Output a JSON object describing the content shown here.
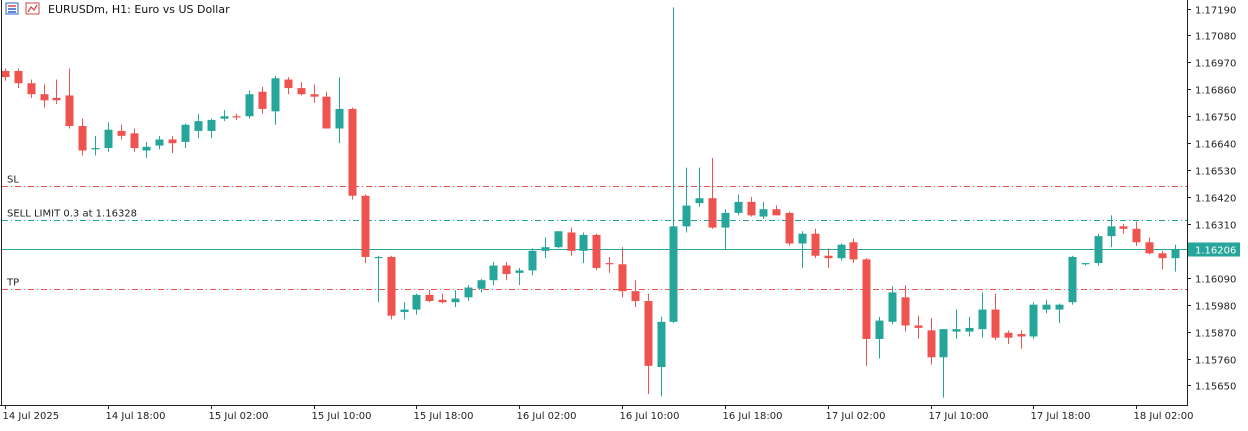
{
  "window": {
    "symbol": "EURUSDm",
    "timeframe": "H1",
    "description": "Euro vs US Dollar",
    "title": "EURUSDm, H1:  Euro vs US Dollar"
  },
  "icons": {
    "window_menu": "window-menu-icon",
    "symbol_chart": "symbol-chart-icon"
  },
  "colors": {
    "bull": "#26a69a",
    "bear": "#ef5350",
    "grid": "#dcdcdc",
    "frame": "#222222",
    "sl_line": "#ef5350",
    "tp_line": "#ef5350",
    "limit_line": "#26a69a",
    "bid_line": "#26a69a",
    "price_tag_bg": "#26a69a",
    "price_tag_text": "#ffffff"
  },
  "chart_data": {
    "type": "candlestick",
    "y_ticks": [
      1.1719,
      1.1708,
      1.1697,
      1.1686,
      1.1675,
      1.1664,
      1.1653,
      1.1642,
      1.1631,
      1.162,
      1.1609,
      1.1598,
      1.1587,
      1.1576,
      1.1565
    ],
    "ylim": [
      1.1557,
      1.17225
    ],
    "current_price": {
      "value": 1.16206,
      "label": "1.16206"
    },
    "levels": [
      {
        "label": "SL",
        "price": 1.16465,
        "style": "dashdot",
        "color": "#ef5350"
      },
      {
        "label": "SELL LIMIT 0.3 at 1.16328",
        "price": 1.16328,
        "style": "dashdot",
        "color": "#26a69a"
      },
      {
        "label": "TP",
        "price": 1.16045,
        "style": "dashdot",
        "color": "#ef5350"
      }
    ],
    "x_labels": [
      {
        "text": "14 Jul 2025",
        "index": 0
      },
      {
        "text": "14 Jul 18:00",
        "index": 8
      },
      {
        "text": "15 Jul 02:00",
        "index": 16
      },
      {
        "text": "15 Jul 10:00",
        "index": 24
      },
      {
        "text": "15 Jul 18:00",
        "index": 32
      },
      {
        "text": "16 Jul 02:00",
        "index": 40
      },
      {
        "text": "16 Jul 10:00",
        "index": 48
      },
      {
        "text": "16 Jul 18:00",
        "index": 56
      },
      {
        "text": "17 Jul 02:00",
        "index": 64
      },
      {
        "text": "17 Jul 10:00",
        "index": 72
      },
      {
        "text": "17 Jul 18:00",
        "index": 80
      },
      {
        "text": "18 Jul 02:00",
        "index": 88
      }
    ],
    "candles": [
      {
        "o": 1.16935,
        "h": 1.16945,
        "l": 1.16895,
        "c": 1.1691
      },
      {
        "o": 1.16935,
        "h": 1.16945,
        "l": 1.16865,
        "c": 1.16885
      },
      {
        "o": 1.16885,
        "h": 1.169,
        "l": 1.16825,
        "c": 1.1684
      },
      {
        "o": 1.1684,
        "h": 1.1688,
        "l": 1.16785,
        "c": 1.16815
      },
      {
        "o": 1.16825,
        "h": 1.169,
        "l": 1.168,
        "c": 1.16815
      },
      {
        "o": 1.16835,
        "h": 1.16945,
        "l": 1.167,
        "c": 1.1671
      },
      {
        "o": 1.1671,
        "h": 1.1674,
        "l": 1.1659,
        "c": 1.1661
      },
      {
        "o": 1.16615,
        "h": 1.1667,
        "l": 1.1659,
        "c": 1.1662
      },
      {
        "o": 1.1662,
        "h": 1.16725,
        "l": 1.16605,
        "c": 1.16695
      },
      {
        "o": 1.1669,
        "h": 1.16715,
        "l": 1.16655,
        "c": 1.1667
      },
      {
        "o": 1.1668,
        "h": 1.167,
        "l": 1.16605,
        "c": 1.1662
      },
      {
        "o": 1.1661,
        "h": 1.16645,
        "l": 1.1658,
        "c": 1.16625
      },
      {
        "o": 1.1663,
        "h": 1.1667,
        "l": 1.16615,
        "c": 1.16655
      },
      {
        "o": 1.16655,
        "h": 1.1667,
        "l": 1.166,
        "c": 1.1664
      },
      {
        "o": 1.16645,
        "h": 1.1672,
        "l": 1.1662,
        "c": 1.16715
      },
      {
        "o": 1.1669,
        "h": 1.1676,
        "l": 1.1666,
        "c": 1.1673
      },
      {
        "o": 1.1669,
        "h": 1.1674,
        "l": 1.1666,
        "c": 1.16735
      },
      {
        "o": 1.1674,
        "h": 1.16775,
        "l": 1.1673,
        "c": 1.1675
      },
      {
        "o": 1.1675,
        "h": 1.1676,
        "l": 1.16735,
        "c": 1.16745
      },
      {
        "o": 1.1675,
        "h": 1.16855,
        "l": 1.1674,
        "c": 1.1684
      },
      {
        "o": 1.1685,
        "h": 1.1687,
        "l": 1.1676,
        "c": 1.1678
      },
      {
        "o": 1.1677,
        "h": 1.16915,
        "l": 1.16715,
        "c": 1.16905
      },
      {
        "o": 1.169,
        "h": 1.1691,
        "l": 1.1684,
        "c": 1.16865
      },
      {
        "o": 1.16865,
        "h": 1.1689,
        "l": 1.16835,
        "c": 1.1684
      },
      {
        "o": 1.1684,
        "h": 1.1688,
        "l": 1.16805,
        "c": 1.1683
      },
      {
        "o": 1.1683,
        "h": 1.1685,
        "l": 1.167,
        "c": 1.167
      },
      {
        "o": 1.167,
        "h": 1.1691,
        "l": 1.1664,
        "c": 1.1678
      },
      {
        "o": 1.1678,
        "h": 1.16785,
        "l": 1.1641,
        "c": 1.16425
      },
      {
        "o": 1.16425,
        "h": 1.1643,
        "l": 1.1615,
        "c": 1.16175
      },
      {
        "o": 1.16175,
        "h": 1.1618,
        "l": 1.1599,
        "c": 1.16175
      },
      {
        "o": 1.16175,
        "h": 1.1618,
        "l": 1.1592,
        "c": 1.15935
      },
      {
        "o": 1.1595,
        "h": 1.1599,
        "l": 1.1592,
        "c": 1.1596
      },
      {
        "o": 1.1596,
        "h": 1.16025,
        "l": 1.1594,
        "c": 1.1602
      },
      {
        "o": 1.1602,
        "h": 1.1604,
        "l": 1.1599,
        "c": 1.15995
      },
      {
        "o": 1.16,
        "h": 1.16025,
        "l": 1.15985,
        "c": 1.1599
      },
      {
        "o": 1.1599,
        "h": 1.1604,
        "l": 1.1597,
        "c": 1.16005
      },
      {
        "o": 1.1601,
        "h": 1.1606,
        "l": 1.15995,
        "c": 1.1605
      },
      {
        "o": 1.16045,
        "h": 1.16085,
        "l": 1.1603,
        "c": 1.1608
      },
      {
        "o": 1.1608,
        "h": 1.16155,
        "l": 1.1606,
        "c": 1.1614
      },
      {
        "o": 1.1614,
        "h": 1.16155,
        "l": 1.1608,
        "c": 1.16105
      },
      {
        "o": 1.1611,
        "h": 1.1613,
        "l": 1.1606,
        "c": 1.1612
      },
      {
        "o": 1.1612,
        "h": 1.1621,
        "l": 1.161,
        "c": 1.162
      },
      {
        "o": 1.162,
        "h": 1.16255,
        "l": 1.1617,
        "c": 1.16215
      },
      {
        "o": 1.16215,
        "h": 1.1628,
        "l": 1.1621,
        "c": 1.1628
      },
      {
        "o": 1.16275,
        "h": 1.16295,
        "l": 1.1618,
        "c": 1.162
      },
      {
        "o": 1.162,
        "h": 1.16275,
        "l": 1.1615,
        "c": 1.16265
      },
      {
        "o": 1.16265,
        "h": 1.1627,
        "l": 1.1612,
        "c": 1.1613
      },
      {
        "o": 1.1615,
        "h": 1.16175,
        "l": 1.1611,
        "c": 1.16145
      },
      {
        "o": 1.16145,
        "h": 1.16215,
        "l": 1.1601,
        "c": 1.16035
      },
      {
        "o": 1.16035,
        "h": 1.1608,
        "l": 1.1597,
        "c": 1.15995
      },
      {
        "o": 1.15995,
        "h": 1.16025,
        "l": 1.15615,
        "c": 1.1573
      },
      {
        "o": 1.15725,
        "h": 1.1593,
        "l": 1.15605,
        "c": 1.1591
      },
      {
        "o": 1.1591,
        "h": 1.17195,
        "l": 1.15905,
        "c": 1.163
      },
      {
        "o": 1.163,
        "h": 1.1654,
        "l": 1.16275,
        "c": 1.16385
      },
      {
        "o": 1.16395,
        "h": 1.1654,
        "l": 1.1638,
        "c": 1.16415
      },
      {
        "o": 1.16415,
        "h": 1.1658,
        "l": 1.1629,
        "c": 1.16295
      },
      {
        "o": 1.16295,
        "h": 1.1637,
        "l": 1.16205,
        "c": 1.16355
      },
      {
        "o": 1.16355,
        "h": 1.1643,
        "l": 1.16345,
        "c": 1.164
      },
      {
        "o": 1.164,
        "h": 1.1642,
        "l": 1.1634,
        "c": 1.16345
      },
      {
        "o": 1.1634,
        "h": 1.164,
        "l": 1.1633,
        "c": 1.1637
      },
      {
        "o": 1.1637,
        "h": 1.16385,
        "l": 1.16345,
        "c": 1.16345
      },
      {
        "o": 1.16355,
        "h": 1.1636,
        "l": 1.1622,
        "c": 1.1623
      },
      {
        "o": 1.1623,
        "h": 1.1628,
        "l": 1.1613,
        "c": 1.1627
      },
      {
        "o": 1.1627,
        "h": 1.1629,
        "l": 1.1617,
        "c": 1.1618
      },
      {
        "o": 1.1618,
        "h": 1.1621,
        "l": 1.1613,
        "c": 1.1617
      },
      {
        "o": 1.1617,
        "h": 1.1623,
        "l": 1.1616,
        "c": 1.16225
      },
      {
        "o": 1.16235,
        "h": 1.1625,
        "l": 1.1615,
        "c": 1.16165
      },
      {
        "o": 1.16165,
        "h": 1.1617,
        "l": 1.1573,
        "c": 1.1584
      },
      {
        "o": 1.1584,
        "h": 1.1593,
        "l": 1.1576,
        "c": 1.15915
      },
      {
        "o": 1.1591,
        "h": 1.16055,
        "l": 1.159,
        "c": 1.1603
      },
      {
        "o": 1.1601,
        "h": 1.1606,
        "l": 1.1587,
        "c": 1.15895
      },
      {
        "o": 1.15895,
        "h": 1.15935,
        "l": 1.1584,
        "c": 1.15885
      },
      {
        "o": 1.15875,
        "h": 1.15925,
        "l": 1.15735,
        "c": 1.15765
      },
      {
        "o": 1.15765,
        "h": 1.1588,
        "l": 1.156,
        "c": 1.1588
      },
      {
        "o": 1.1587,
        "h": 1.1596,
        "l": 1.1584,
        "c": 1.1588
      },
      {
        "o": 1.1587,
        "h": 1.1593,
        "l": 1.1585,
        "c": 1.15885
      },
      {
        "o": 1.1588,
        "h": 1.1603,
        "l": 1.15845,
        "c": 1.1596
      },
      {
        "o": 1.1596,
        "h": 1.16025,
        "l": 1.15835,
        "c": 1.15845
      },
      {
        "o": 1.15865,
        "h": 1.15875,
        "l": 1.1582,
        "c": 1.15845
      },
      {
        "o": 1.1586,
        "h": 1.15875,
        "l": 1.158,
        "c": 1.1585
      },
      {
        "o": 1.1585,
        "h": 1.1599,
        "l": 1.1584,
        "c": 1.1598
      },
      {
        "o": 1.1596,
        "h": 1.16,
        "l": 1.15945,
        "c": 1.1598
      },
      {
        "o": 1.1596,
        "h": 1.15985,
        "l": 1.15905,
        "c": 1.1598
      },
      {
        "o": 1.1599,
        "h": 1.1618,
        "l": 1.1598,
        "c": 1.16175
      },
      {
        "o": 1.1615,
        "h": 1.1615,
        "l": 1.1614,
        "c": 1.1615
      },
      {
        "o": 1.1615,
        "h": 1.1627,
        "l": 1.1614,
        "c": 1.1626
      },
      {
        "o": 1.1626,
        "h": 1.16345,
        "l": 1.16215,
        "c": 1.163
      },
      {
        "o": 1.163,
        "h": 1.1631,
        "l": 1.1627,
        "c": 1.1629
      },
      {
        "o": 1.1629,
        "h": 1.1632,
        "l": 1.1622,
        "c": 1.16235
      },
      {
        "o": 1.16235,
        "h": 1.16255,
        "l": 1.16185,
        "c": 1.1619
      },
      {
        "o": 1.1619,
        "h": 1.162,
        "l": 1.16125,
        "c": 1.1617
      },
      {
        "o": 1.1617,
        "h": 1.16225,
        "l": 1.16115,
        "c": 1.16206
      }
    ]
  }
}
